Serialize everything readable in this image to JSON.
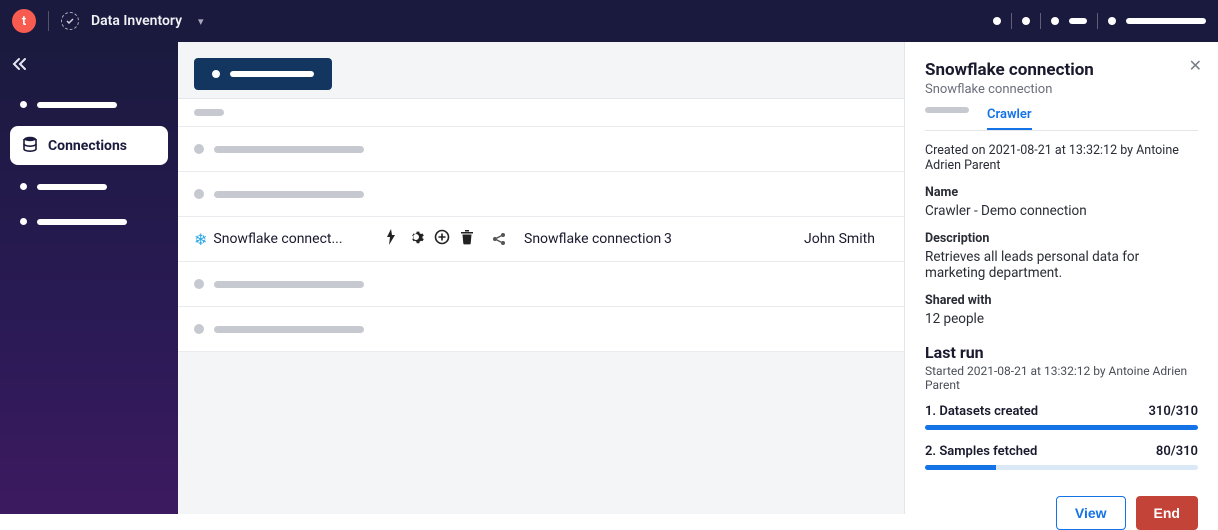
{
  "topbar": {
    "logo_letter": "t",
    "title": "Data Inventory"
  },
  "sidebar": {
    "active_label": "Connections"
  },
  "table": {
    "active_row": {
      "name_truncated": "Snowflake connect...",
      "col_connection": "Snowflake connection",
      "col_count": "3",
      "col_owner": "John Smith"
    }
  },
  "panel": {
    "title": "Snowflake connection",
    "subtitle": "Snowflake connection",
    "tab_active": "Crawler",
    "created_line": "Created on 2021-08-21 at 13:32:12 by Antoine Adrien Parent",
    "name_label": "Name",
    "name_value": "Crawler - Demo connection",
    "description_label": "Description",
    "description_value": "Retrieves all leads personal data for marketing department.",
    "shared_label": "Shared with",
    "shared_value": "12 people",
    "lastrun_title": "Last run",
    "lastrun_sub": "Started 2021-08-21 at 13:32:12 by Antoine Adrien Parent",
    "progress1": {
      "label": "1. Datasets created",
      "value": "310/310",
      "percent": 100
    },
    "progress2": {
      "label": "2. Samples fetched",
      "value": "80/310",
      "percent": 26
    },
    "btn_view": "View",
    "btn_end": "End"
  },
  "colors": {
    "topbar_bg": "#1a1a3e",
    "logo_bg": "#f85c50",
    "accent": "#1473e6",
    "danger": "#c44339",
    "snowflake": "#2aa7e6",
    "skeleton": "#c6c9cf",
    "pill_bg": "#12365f"
  }
}
